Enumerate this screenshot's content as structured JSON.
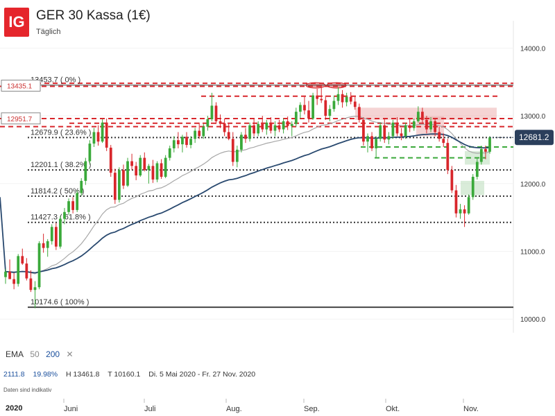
{
  "header": {
    "logo_text": "IG",
    "title": "GER 30 Kassa (1€)",
    "subtitle": "Täglich"
  },
  "indicator": {
    "name": "EMA",
    "period1": "50",
    "period2": "200",
    "close_icon": "close-icon"
  },
  "stats": {
    "value1": "2111.8",
    "value2": "19.98%",
    "high": "H 13461.8",
    "low": "T 10160.1",
    "range": "Di. 5 Mai 2020 - Fr. 27 Nov. 2020"
  },
  "note": "Daten sind indikativ",
  "year_label": "2020",
  "chart_data": {
    "type": "candlestick",
    "y_axis": {
      "ticks": [
        {
          "value": 10000,
          "label": "10000.0"
        },
        {
          "value": 11000,
          "label": "11000.0"
        },
        {
          "value": 12000,
          "label": "12000.0"
        },
        {
          "value": 13000,
          "label": "13000.0"
        },
        {
          "value": 14000,
          "label": "14000.0"
        }
      ],
      "ylim": [
        9900,
        14300
      ]
    },
    "x_axis": {
      "labels": [
        "Juni",
        "Juli",
        "Aug.",
        "Sep.",
        "Okt.",
        "Nov."
      ]
    },
    "current_price": {
      "value": 12681.2,
      "label": "12681.2"
    },
    "fib_levels": [
      {
        "value": 13453.7,
        "label": "13453.7 ( 0% )"
      },
      {
        "value": 12679.9,
        "label": "12679.9 ( 23.6% )"
      },
      {
        "value": 12201.1,
        "label": "12201.1 ( 38.2% )"
      },
      {
        "value": 11814.2,
        "label": "11814.2 ( 50% )"
      },
      {
        "value": 11427.3,
        "label": "11427.3 ( 61.8% )"
      },
      {
        "value": 10174.6,
        "label": "10174.6 ( 100% )"
      }
    ],
    "left_boxes": [
      {
        "value": 13435.1,
        "label": "13435.1"
      },
      {
        "value": 12951.7,
        "label": "12951.7"
      }
    ],
    "resistance_lines": [
      13480,
      13435,
      13290,
      12960,
      12890,
      12840
    ],
    "support_lines": [
      12540,
      12380
    ],
    "colors": {
      "up": "#3aa93a",
      "down": "#d8262b",
      "ema50": "#a7a7a7",
      "ema200": "#29496f",
      "resistance": "#d8262b",
      "support": "#3aa93a",
      "price_tag": "#2b3f5c"
    },
    "candles": [
      {
        "o": 10620,
        "h": 10740,
        "l": 10520,
        "c": 10700
      },
      {
        "o": 10700,
        "h": 10880,
        "l": 10600,
        "c": 10590
      },
      {
        "o": 10590,
        "h": 10680,
        "l": 10440,
        "c": 10520
      },
      {
        "o": 10520,
        "h": 10960,
        "l": 10480,
        "c": 10930
      },
      {
        "o": 10930,
        "h": 11040,
        "l": 10800,
        "c": 10820
      },
      {
        "o": 10820,
        "h": 10900,
        "l": 10570,
        "c": 10600
      },
      {
        "o": 10600,
        "h": 10720,
        "l": 10400,
        "c": 10430
      },
      {
        "o": 10430,
        "h": 10560,
        "l": 10160,
        "c": 10470
      },
      {
        "o": 10470,
        "h": 11150,
        "l": 10440,
        "c": 11120
      },
      {
        "o": 11120,
        "h": 11260,
        "l": 10980,
        "c": 11050
      },
      {
        "o": 11050,
        "h": 11180,
        "l": 10920,
        "c": 11150
      },
      {
        "o": 11150,
        "h": 11400,
        "l": 11100,
        "c": 11360
      },
      {
        "o": 11360,
        "h": 11420,
        "l": 11020,
        "c": 11070
      },
      {
        "o": 11070,
        "h": 11520,
        "l": 11040,
        "c": 11480
      },
      {
        "o": 11480,
        "h": 11640,
        "l": 11400,
        "c": 11580
      },
      {
        "o": 11580,
        "h": 11780,
        "l": 11540,
        "c": 11740
      },
      {
        "o": 11740,
        "h": 11800,
        "l": 11560,
        "c": 11610
      },
      {
        "o": 11610,
        "h": 11900,
        "l": 11580,
        "c": 11860
      },
      {
        "o": 11860,
        "h": 12080,
        "l": 11820,
        "c": 12040
      },
      {
        "o": 12040,
        "h": 12380,
        "l": 11980,
        "c": 12330
      },
      {
        "o": 12330,
        "h": 12640,
        "l": 12280,
        "c": 12590
      },
      {
        "o": 12590,
        "h": 12820,
        "l": 12540,
        "c": 12760
      },
      {
        "o": 12760,
        "h": 12860,
        "l": 12560,
        "c": 12620
      },
      {
        "o": 12620,
        "h": 12950,
        "l": 12600,
        "c": 12900
      },
      {
        "o": 12900,
        "h": 12960,
        "l": 12480,
        "c": 12530
      },
      {
        "o": 12530,
        "h": 12570,
        "l": 12100,
        "c": 12160
      },
      {
        "o": 12160,
        "h": 12220,
        "l": 11700,
        "c": 11760
      },
      {
        "o": 11760,
        "h": 12240,
        "l": 11720,
        "c": 12200
      },
      {
        "o": 12200,
        "h": 12280,
        "l": 11920,
        "c": 11970
      },
      {
        "o": 11970,
        "h": 12380,
        "l": 11950,
        "c": 12330
      },
      {
        "o": 12330,
        "h": 12440,
        "l": 12200,
        "c": 12260
      },
      {
        "o": 12260,
        "h": 12320,
        "l": 12050,
        "c": 12120
      },
      {
        "o": 12120,
        "h": 12420,
        "l": 12100,
        "c": 12380
      },
      {
        "o": 12380,
        "h": 12460,
        "l": 12180,
        "c": 12200
      },
      {
        "o": 12200,
        "h": 12290,
        "l": 12000,
        "c": 12260
      },
      {
        "o": 12260,
        "h": 12350,
        "l": 12010,
        "c": 12060
      },
      {
        "o": 12060,
        "h": 12330,
        "l": 12020,
        "c": 12300
      },
      {
        "o": 12300,
        "h": 12360,
        "l": 12070,
        "c": 12100
      },
      {
        "o": 12100,
        "h": 12420,
        "l": 12080,
        "c": 12380
      },
      {
        "o": 12380,
        "h": 12560,
        "l": 12340,
        "c": 12520
      },
      {
        "o": 12520,
        "h": 12700,
        "l": 12460,
        "c": 12640
      },
      {
        "o": 12640,
        "h": 12760,
        "l": 12520,
        "c": 12580
      },
      {
        "o": 12580,
        "h": 12720,
        "l": 12460,
        "c": 12690
      },
      {
        "o": 12690,
        "h": 12760,
        "l": 12530,
        "c": 12570
      },
      {
        "o": 12570,
        "h": 12700,
        "l": 12520,
        "c": 12660
      },
      {
        "o": 12660,
        "h": 12820,
        "l": 12600,
        "c": 12780
      },
      {
        "o": 12780,
        "h": 12900,
        "l": 12660,
        "c": 12700
      },
      {
        "o": 12700,
        "h": 12880,
        "l": 12660,
        "c": 12840
      },
      {
        "o": 12840,
        "h": 13000,
        "l": 12780,
        "c": 12950
      },
      {
        "o": 12950,
        "h": 13340,
        "l": 12920,
        "c": 13150
      },
      {
        "o": 13150,
        "h": 13200,
        "l": 12880,
        "c": 12920
      },
      {
        "o": 12920,
        "h": 13020,
        "l": 12820,
        "c": 12890
      },
      {
        "o": 12890,
        "h": 12960,
        "l": 12700,
        "c": 12760
      },
      {
        "o": 12760,
        "h": 12880,
        "l": 12640,
        "c": 12660
      },
      {
        "o": 12660,
        "h": 12760,
        "l": 12260,
        "c": 12320
      },
      {
        "o": 12320,
        "h": 12560,
        "l": 12240,
        "c": 12500
      },
      {
        "o": 12500,
        "h": 12760,
        "l": 12460,
        "c": 12720
      },
      {
        "o": 12720,
        "h": 12820,
        "l": 12600,
        "c": 12660
      },
      {
        "o": 12660,
        "h": 12900,
        "l": 12620,
        "c": 12860
      },
      {
        "o": 12860,
        "h": 12960,
        "l": 12700,
        "c": 12740
      },
      {
        "o": 12740,
        "h": 12920,
        "l": 12700,
        "c": 12880
      },
      {
        "o": 12880,
        "h": 13000,
        "l": 12760,
        "c": 12800
      },
      {
        "o": 12800,
        "h": 12940,
        "l": 12720,
        "c": 12900
      },
      {
        "o": 12900,
        "h": 12980,
        "l": 12740,
        "c": 12780
      },
      {
        "o": 12780,
        "h": 12920,
        "l": 12700,
        "c": 12860
      },
      {
        "o": 12860,
        "h": 12940,
        "l": 12760,
        "c": 12800
      },
      {
        "o": 12800,
        "h": 12960,
        "l": 12740,
        "c": 12920
      },
      {
        "o": 12920,
        "h": 12990,
        "l": 12790,
        "c": 12850
      },
      {
        "o": 12850,
        "h": 12920,
        "l": 12700,
        "c": 12880
      },
      {
        "o": 12880,
        "h": 13120,
        "l": 12840,
        "c": 13060
      },
      {
        "o": 13060,
        "h": 13200,
        "l": 12960,
        "c": 13160
      },
      {
        "o": 13160,
        "h": 13280,
        "l": 13020,
        "c": 13080
      },
      {
        "o": 13080,
        "h": 13220,
        "l": 12900,
        "c": 12960
      },
      {
        "o": 12960,
        "h": 13340,
        "l": 12940,
        "c": 13300
      },
      {
        "o": 13300,
        "h": 13400,
        "l": 13160,
        "c": 13250
      },
      {
        "o": 13250,
        "h": 13461,
        "l": 13190,
        "c": 13230
      },
      {
        "o": 13230,
        "h": 13300,
        "l": 12940,
        "c": 13000
      },
      {
        "o": 13000,
        "h": 13160,
        "l": 12920,
        "c": 13100
      },
      {
        "o": 13100,
        "h": 13300,
        "l": 13060,
        "c": 13220
      },
      {
        "o": 13220,
        "h": 13420,
        "l": 13160,
        "c": 13320
      },
      {
        "o": 13320,
        "h": 13380,
        "l": 13120,
        "c": 13200
      },
      {
        "o": 13200,
        "h": 13340,
        "l": 13140,
        "c": 13280
      },
      {
        "o": 13280,
        "h": 13350,
        "l": 13170,
        "c": 13210
      },
      {
        "o": 13210,
        "h": 13280,
        "l": 13090,
        "c": 13130
      },
      {
        "o": 13130,
        "h": 13180,
        "l": 12900,
        "c": 12940
      },
      {
        "o": 12940,
        "h": 12980,
        "l": 12560,
        "c": 12620
      },
      {
        "o": 12620,
        "h": 12740,
        "l": 12460,
        "c": 12700
      },
      {
        "o": 12700,
        "h": 12760,
        "l": 12480,
        "c": 12520
      },
      {
        "o": 12520,
        "h": 12700,
        "l": 12380,
        "c": 12660
      },
      {
        "o": 12660,
        "h": 12900,
        "l": 12620,
        "c": 12860
      },
      {
        "o": 12860,
        "h": 12960,
        "l": 12600,
        "c": 12650
      },
      {
        "o": 12650,
        "h": 12760,
        "l": 12580,
        "c": 12700
      },
      {
        "o": 12700,
        "h": 12940,
        "l": 12660,
        "c": 12900
      },
      {
        "o": 12900,
        "h": 12980,
        "l": 12700,
        "c": 12740
      },
      {
        "o": 12740,
        "h": 12820,
        "l": 12640,
        "c": 12700
      },
      {
        "o": 12700,
        "h": 12900,
        "l": 12660,
        "c": 12860
      },
      {
        "o": 12860,
        "h": 12960,
        "l": 12760,
        "c": 12820
      },
      {
        "o": 12820,
        "h": 12960,
        "l": 12780,
        "c": 12920
      },
      {
        "o": 12920,
        "h": 13140,
        "l": 12900,
        "c": 13060
      },
      {
        "o": 13060,
        "h": 13120,
        "l": 12880,
        "c": 12940
      },
      {
        "o": 12940,
        "h": 13000,
        "l": 12740,
        "c": 12800
      },
      {
        "o": 12800,
        "h": 12980,
        "l": 12760,
        "c": 12920
      },
      {
        "o": 12920,
        "h": 12960,
        "l": 12700,
        "c": 12760
      },
      {
        "o": 12760,
        "h": 12840,
        "l": 12620,
        "c": 12660
      },
      {
        "o": 12660,
        "h": 12740,
        "l": 12540,
        "c": 12600
      },
      {
        "o": 12600,
        "h": 12660,
        "l": 12140,
        "c": 12200
      },
      {
        "o": 12200,
        "h": 12260,
        "l": 11860,
        "c": 11900
      },
      {
        "o": 11900,
        "h": 11980,
        "l": 11500,
        "c": 11560
      },
      {
        "o": 11560,
        "h": 11700,
        "l": 11480,
        "c": 11620
      },
      {
        "o": 11620,
        "h": 11680,
        "l": 11360,
        "c": 11560
      },
      {
        "o": 11560,
        "h": 11840,
        "l": 11540,
        "c": 11800
      },
      {
        "o": 11800,
        "h": 12140,
        "l": 11760,
        "c": 12100
      },
      {
        "o": 12100,
        "h": 12380,
        "l": 12060,
        "c": 12320
      },
      {
        "o": 12320,
        "h": 12560,
        "l": 12280,
        "c": 12510
      },
      {
        "o": 12510,
        "h": 12560,
        "l": 12360,
        "c": 12470
      },
      {
        "o": 12470,
        "h": 12700,
        "l": 12440,
        "c": 12681
      }
    ]
  }
}
